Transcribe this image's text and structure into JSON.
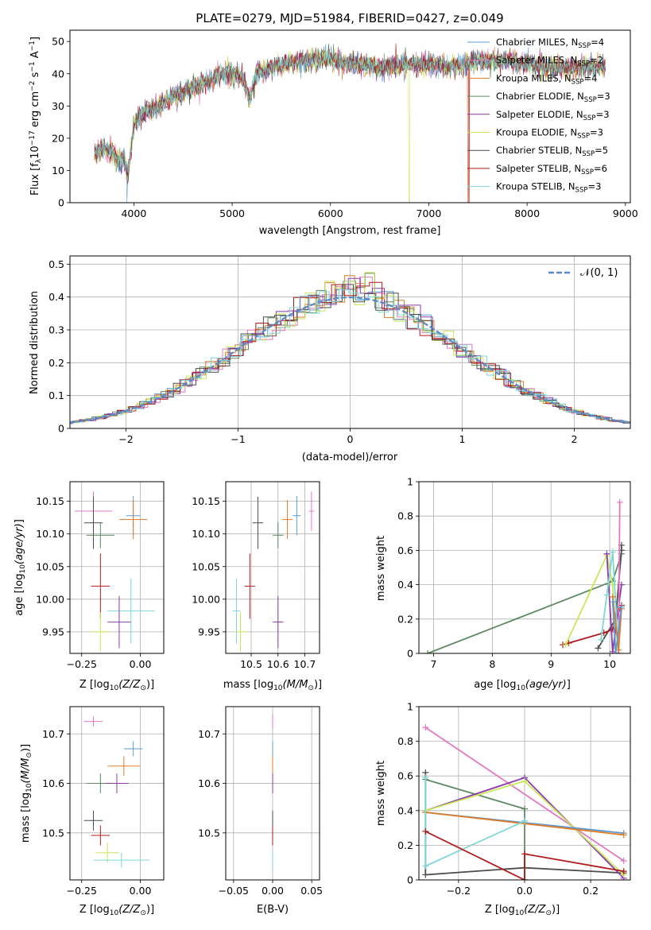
{
  "colors": {
    "chabrier_miles": "#5b9bd5",
    "salpeter_miles": "#e377c2",
    "kroupa_miles": "#e07b28",
    "chabrier_elodie": "#5e8a63",
    "salpeter_elodie": "#8e3aa8",
    "kroupa_elodie": "#c6e85a",
    "chabrier_stelib": "#4d4d4d",
    "salpeter_stelib": "#b01c1c",
    "kroupa_stelib": "#7fd6d6"
  },
  "chart_data": [
    {
      "id": "spectrum",
      "type": "line",
      "title": "PLATE=0279, MJD=51984, FIBERID=0427, z=0.049",
      "xlabel": "wavelength [Angstrom, rest frame]",
      "ylabel_main": "Flux [f",
      "ylabel_sub1": "λ",
      "ylabel_mid": "10",
      "ylabel_sup1": "−17",
      "ylabel_rest": " erg cm",
      "ylabel_sup2": "−2",
      "ylabel_rest2": " s",
      "ylabel_sup3": "−1",
      "ylabel_rest3": " A",
      "ylabel_sup4": "−1",
      "ylabel_end": "]",
      "xlim": [
        3350,
        9050
      ],
      "ylim": [
        0,
        53.5
      ],
      "xticks": [
        4000,
        5000,
        6000,
        7000,
        8000,
        9000
      ],
      "yticks": [
        0,
        10,
        20,
        30,
        40,
        50
      ],
      "x_range": [
        3600,
        8800
      ],
      "anchors": [
        [
          3600,
          15
        ],
        [
          3700,
          17
        ],
        [
          3800,
          15
        ],
        [
          3850,
          12
        ],
        [
          3900,
          14
        ],
        [
          3940,
          8
        ],
        [
          3970,
          16
        ],
        [
          4000,
          24
        ],
        [
          4100,
          28
        ],
        [
          4200,
          29
        ],
        [
          4300,
          31
        ],
        [
          4400,
          33
        ],
        [
          4500,
          34
        ],
        [
          4600,
          36
        ],
        [
          4700,
          37
        ],
        [
          4800,
          38
        ],
        [
          4900,
          40
        ],
        [
          5000,
          40
        ],
        [
          5100,
          39
        ],
        [
          5175,
          32
        ],
        [
          5250,
          40
        ],
        [
          5500,
          43
        ],
        [
          5700,
          44
        ],
        [
          6000,
          45
        ],
        [
          6200,
          43
        ],
        [
          6500,
          42
        ],
        [
          6800,
          43
        ],
        [
          7000,
          43
        ],
        [
          7200,
          42
        ],
        [
          7500,
          44
        ],
        [
          7800,
          44
        ],
        [
          8000,
          43
        ],
        [
          8200,
          42
        ],
        [
          8500,
          42
        ],
        [
          8800,
          42
        ]
      ],
      "legend_position": "top-right",
      "legend": [
        {
          "key": "chabrier_miles",
          "label": "Chabrier MILES, N",
          "n": "=4"
        },
        {
          "key": "salpeter_miles",
          "label": "Salpeter MILES, N",
          "n": "=2"
        },
        {
          "key": "kroupa_miles",
          "label": "Kroupa MILES, N",
          "n": "=4"
        },
        {
          "key": "chabrier_elodie",
          "label": "Chabrier ELODIE, N",
          "n": "=3"
        },
        {
          "key": "salpeter_elodie",
          "label": "Salpeter ELODIE, N",
          "n": "=3"
        },
        {
          "key": "kroupa_elodie",
          "label": "Kroupa ELODIE, N",
          "n": "=3"
        },
        {
          "key": "chabrier_stelib",
          "label": "Chabrier STELIB, N",
          "n": "=5"
        },
        {
          "key": "salpeter_stelib",
          "label": "Salpeter STELIB, N",
          "n": "=6"
        },
        {
          "key": "kroupa_stelib",
          "label": "Kroupa STELIB, N",
          "n": "=3"
        }
      ],
      "legend_sub": "SSP"
    },
    {
      "id": "residuals",
      "type": "histogram",
      "xlabel": "(data-model)/error",
      "ylabel": "Normed distribution",
      "xlim": [
        -2.5,
        2.5
      ],
      "ylim": [
        0,
        0.525
      ],
      "xticks": [
        -2,
        -1,
        0,
        1,
        2
      ],
      "yticks": [
        0.0,
        0.1,
        0.2,
        0.3,
        0.4,
        0.5
      ],
      "bin_width": 0.1,
      "legend": "𝒩(0, 1)",
      "legend_position": "top-right",
      "grid": true
    },
    {
      "id": "age_vs_Z",
      "type": "errorbar",
      "xlabel": "Z [log",
      "xlabel_sub": "10",
      "xlabel_rest": "(Z/Z",
      "xlabel_sun": "⊙",
      "xlabel_end": ")]",
      "ylabel": "age  [log10(age/yr)]",
      "xlim": [
        -0.3,
        0.1
      ],
      "ylim": [
        9.917,
        10.18
      ],
      "xticks": [
        -0.25,
        0.0
      ],
      "xtick_labels": [
        "−0.25",
        "0.00"
      ],
      "yticks": [
        9.95,
        10.0,
        10.05,
        10.1,
        10.15
      ],
      "ytick_labels": [
        "9.95",
        "10.00",
        "10.05",
        "10.10",
        "10.15"
      ],
      "points": [
        {
          "key": "salpeter_miles",
          "x": -0.2,
          "xerr": 0.08,
          "y": 10.135,
          "yerr": 0.03
        },
        {
          "key": "chabrier_miles",
          "x": -0.03,
          "xerr": 0.03,
          "y": 10.128,
          "yerr": 0.03
        },
        {
          "key": "kroupa_miles",
          "x": -0.03,
          "xerr": 0.06,
          "y": 10.122,
          "yerr": 0.03
        },
        {
          "key": "chabrier_stelib",
          "x": -0.2,
          "xerr": 0.04,
          "y": 10.117,
          "yerr": 0.04
        },
        {
          "key": "chabrier_elodie",
          "x": -0.17,
          "xerr": 0.06,
          "y": 10.098,
          "yerr": 0.02
        },
        {
          "key": "salpeter_stelib",
          "x": -0.17,
          "xerr": 0.04,
          "y": 10.02,
          "yerr": 0.05
        },
        {
          "key": "kroupa_stelib",
          "x": -0.04,
          "xerr": 0.1,
          "y": 9.982,
          "yerr": 0.05
        },
        {
          "key": "salpeter_elodie",
          "x": -0.09,
          "xerr": 0.05,
          "y": 9.965,
          "yerr": 0.04
        },
        {
          "key": "kroupa_elodie",
          "x": -0.17,
          "xerr": 0.04,
          "y": 9.95,
          "yerr": 0.03
        }
      ]
    },
    {
      "id": "age_vs_mass",
      "type": "errorbar",
      "xlabel": "mass [log",
      "xlabel_sub": "10",
      "xlabel_rest": "(M/M",
      "xlabel_sun": "⊙",
      "xlabel_end": ")]",
      "xlim": [
        10.405,
        10.755
      ],
      "ylim": [
        9.917,
        10.18
      ],
      "xticks": [
        10.5,
        10.6,
        10.7
      ],
      "xtick_labels": [
        "10.5",
        "10.6",
        "10.7"
      ],
      "yticks": [
        9.95,
        10.0,
        10.05,
        10.1,
        10.15
      ],
      "ytick_labels": [
        "9.95",
        "10.00",
        "10.05",
        "10.10",
        "10.15"
      ],
      "points": [
        {
          "key": "salpeter_miles",
          "x": 10.725,
          "xerr": 0.01,
          "y": 10.135,
          "yerr": 0.03
        },
        {
          "key": "chabrier_miles",
          "x": 10.67,
          "xerr": 0.015,
          "y": 10.128,
          "yerr": 0.03
        },
        {
          "key": "kroupa_miles",
          "x": 10.635,
          "xerr": 0.02,
          "y": 10.122,
          "yerr": 0.03
        },
        {
          "key": "chabrier_stelib",
          "x": 10.525,
          "xerr": 0.02,
          "y": 10.117,
          "yerr": 0.04
        },
        {
          "key": "chabrier_elodie",
          "x": 10.6,
          "xerr": 0.02,
          "y": 10.098,
          "yerr": 0.02
        },
        {
          "key": "salpeter_stelib",
          "x": 10.495,
          "xerr": 0.02,
          "y": 10.02,
          "yerr": 0.05
        },
        {
          "key": "kroupa_stelib",
          "x": 10.445,
          "xerr": 0.015,
          "y": 9.982,
          "yerr": 0.05
        },
        {
          "key": "salpeter_elodie",
          "x": 10.6,
          "xerr": 0.02,
          "y": 9.965,
          "yerr": 0.04
        },
        {
          "key": "kroupa_elodie",
          "x": 10.46,
          "xerr": 0.02,
          "y": 9.95,
          "yerr": 0.03
        }
      ]
    },
    {
      "id": "weight_vs_age",
      "type": "line",
      "xlabel": "age  [log10(age/yr)]",
      "ylabel": "mass weight",
      "xlim": [
        6.75,
        10.35
      ],
      "ylim": [
        0,
        1.0
      ],
      "xticks": [
        7,
        8,
        9,
        10
      ],
      "yticks": [
        0.0,
        0.2,
        0.4,
        0.6,
        0.8,
        1.0
      ],
      "series": [
        {
          "key": "chabrier_elodie",
          "x": [
            6.9,
            10.05,
            10.2
          ],
          "y": [
            0.0,
            0.42,
            0.58
          ]
        },
        {
          "key": "chabrier_stelib",
          "x": [
            9.8,
            10.1,
            10.2,
            10.2
          ],
          "y": [
            0.03,
            0.2,
            0.6,
            0.63
          ]
        },
        {
          "key": "salpeter_stelib",
          "x": [
            9.2,
            9.3,
            9.9,
            10.05,
            10.2
          ],
          "y": [
            0.05,
            0.06,
            0.12,
            0.14,
            0.28
          ]
        },
        {
          "key": "kroupa_elodie",
          "x": [
            9.25,
            9.95,
            10.05,
            10.1
          ],
          "y": [
            0.05,
            0.57,
            0.4,
            0.03
          ]
        },
        {
          "key": "salpeter_elodie",
          "x": [
            9.95,
            10.05,
            10.2
          ],
          "y": [
            0.58,
            0.01,
            0.4
          ]
        },
        {
          "key": "kroupa_stelib",
          "x": [
            9.85,
            9.95,
            10.05,
            10.15
          ],
          "y": [
            0.08,
            0.34,
            0.59,
            0.0
          ]
        },
        {
          "key": "salpeter_miles",
          "x": [
            10.15,
            10.17
          ],
          "y": [
            0.0,
            0.88
          ]
        },
        {
          "key": "kroupa_miles",
          "x": [
            10.05,
            10.15,
            10.2
          ],
          "y": [
            0.33,
            0.02,
            0.26
          ]
        },
        {
          "key": "chabrier_miles",
          "x": [
            10.05,
            10.1,
            10.2
          ],
          "y": [
            0.3,
            0.0,
            0.27
          ]
        }
      ]
    },
    {
      "id": "mass_vs_Z",
      "type": "errorbar",
      "xlabel": "Z [log",
      "xlabel_sub": "10",
      "xlabel_rest": "(Z/Z",
      "xlabel_sun": "⊙",
      "xlabel_end": ")]",
      "ylabel": "mass [log10(M/M⊙)]",
      "xlim": [
        -0.3,
        0.1
      ],
      "ylim": [
        10.405,
        10.755
      ],
      "xticks": [
        -0.25,
        0.0
      ],
      "xtick_labels": [
        "−0.25",
        "0.00"
      ],
      "yticks": [
        10.5,
        10.6,
        10.7
      ],
      "ytick_labels": [
        "10.5",
        "10.6",
        "10.7"
      ],
      "points": [
        {
          "key": "salpeter_miles",
          "x": -0.2,
          "xerr": 0.04,
          "y": 10.725,
          "yerr": 0.01
        },
        {
          "key": "chabrier_miles",
          "x": -0.03,
          "xerr": 0.04,
          "y": 10.67,
          "yerr": 0.015
        },
        {
          "key": "kroupa_miles",
          "x": -0.07,
          "xerr": 0.07,
          "y": 10.635,
          "yerr": 0.02
        },
        {
          "key": "chabrier_elodie",
          "x": -0.17,
          "xerr": 0.06,
          "y": 10.6,
          "yerr": 0.02
        },
        {
          "key": "salpeter_elodie",
          "x": -0.1,
          "xerr": 0.05,
          "y": 10.6,
          "yerr": 0.02
        },
        {
          "key": "chabrier_stelib",
          "x": -0.2,
          "xerr": 0.04,
          "y": 10.525,
          "yerr": 0.02
        },
        {
          "key": "salpeter_stelib",
          "x": -0.17,
          "xerr": 0.04,
          "y": 10.495,
          "yerr": 0.02
        },
        {
          "key": "kroupa_elodie",
          "x": -0.14,
          "xerr": 0.05,
          "y": 10.46,
          "yerr": 0.02
        },
        {
          "key": "kroupa_stelib",
          "x": -0.08,
          "xerr": 0.12,
          "y": 10.445,
          "yerr": 0.015
        }
      ]
    },
    {
      "id": "mass_vs_ebv",
      "type": "errorbar",
      "xlabel": "E(B-V)",
      "xlim": [
        -0.06,
        0.06
      ],
      "ylim": [
        10.405,
        10.755
      ],
      "xticks": [
        -0.05,
        0.0,
        0.05
      ],
      "xtick_labels": [
        "−0.05",
        "0.00",
        "0.05"
      ],
      "yticks": [
        10.5,
        10.6,
        10.7
      ],
      "ytick_labels": [
        "10.5",
        "10.6",
        "10.7"
      ],
      "points": [
        {
          "key": "salpeter_miles",
          "x": 0.0,
          "xerr": 0.0,
          "y": 10.725,
          "yerr": 0.015
        },
        {
          "key": "chabrier_miles",
          "x": 0.0,
          "xerr": 0.0,
          "y": 10.67,
          "yerr": 0.015
        },
        {
          "key": "kroupa_miles",
          "x": 0.0,
          "xerr": 0.0,
          "y": 10.635,
          "yerr": 0.02
        },
        {
          "key": "salpeter_elodie",
          "x": 0.0,
          "xerr": 0.0,
          "y": 10.6,
          "yerr": 0.02
        },
        {
          "key": "chabrier_stelib",
          "x": 0.0,
          "xerr": 0.0,
          "y": 10.525,
          "yerr": 0.02
        },
        {
          "key": "salpeter_stelib",
          "x": 0.0,
          "xerr": 0.0,
          "y": 10.495,
          "yerr": 0.02
        },
        {
          "key": "kroupa_stelib",
          "x": 0.0,
          "xerr": 0.0,
          "y": 10.445,
          "yerr": 0.02
        }
      ]
    },
    {
      "id": "weight_vs_Z",
      "type": "line",
      "xlabel": "Z [log",
      "xlabel_sub": "10",
      "xlabel_rest": "(Z/Z",
      "xlabel_sun": "⊙",
      "xlabel_end": ")]",
      "ylabel": "mass weight",
      "xlim": [
        -0.32,
        0.32
      ],
      "ylim": [
        0,
        1.0
      ],
      "xticks": [
        -0.2,
        0.0,
        0.2
      ],
      "xtick_labels": [
        "−0.2",
        "0.0",
        "0.2"
      ],
      "yticks": [
        0.0,
        0.2,
        0.4,
        0.6,
        0.8,
        1.0
      ],
      "series": [
        {
          "key": "salpeter_miles",
          "x": [
            -0.3,
            0.3
          ],
          "y": [
            0.88,
            0.11
          ]
        },
        {
          "key": "chabrier_elodie",
          "x": [
            -0.3,
            0.0,
            0.0
          ],
          "y": [
            0.58,
            0.41,
            0.0
          ]
        },
        {
          "key": "chabrier_stelib",
          "x": [
            -0.3,
            -0.3,
            -0.3,
            0.0,
            0.3
          ],
          "y": [
            0.62,
            0.28,
            0.03,
            0.07,
            0.04
          ]
        },
        {
          "key": "salpeter_elodie",
          "x": [
            -0.3,
            0.0,
            0.3
          ],
          "y": [
            0.4,
            0.59,
            0.01
          ]
        },
        {
          "key": "kroupa_elodie",
          "x": [
            -0.3,
            0.0,
            0.3
          ],
          "y": [
            0.4,
            0.57,
            0.03
          ]
        },
        {
          "key": "chabrier_miles",
          "x": [
            -0.3,
            0.3
          ],
          "y": [
            0.39,
            0.27
          ]
        },
        {
          "key": "kroupa_miles",
          "x": [
            -0.3,
            0.3
          ],
          "y": [
            0.39,
            0.26
          ]
        },
        {
          "key": "kroupa_stelib",
          "x": [
            -0.3,
            -0.3,
            0.0,
            0.0
          ],
          "y": [
            0.59,
            0.08,
            0.34,
            0.34
          ]
        },
        {
          "key": "salpeter_stelib",
          "x": [
            -0.3,
            0.0,
            0.0,
            0.3
          ],
          "y": [
            0.28,
            0.0,
            0.15,
            0.05
          ]
        }
      ]
    }
  ]
}
